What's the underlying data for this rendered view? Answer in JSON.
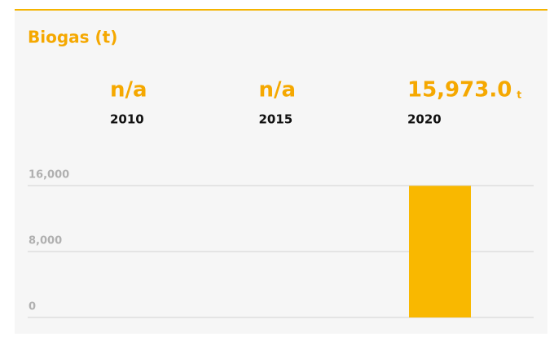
{
  "chart_data": {
    "type": "bar",
    "title": "Biogas (t)",
    "categories": [
      "2010",
      "2015",
      "2020"
    ],
    "values": [
      null,
      null,
      15973
    ],
    "value_labels": [
      "n/a",
      "n/a",
      "15,973.0"
    ],
    "unit": "t",
    "color": "#f9b800",
    "ylim": [
      0,
      16000
    ],
    "yticks": [
      0,
      {
        "value": 8000,
        "label": "8,000"
      },
      {
        "value": 16000,
        "label": "16,000"
      }
    ],
    "grid": true
  }
}
